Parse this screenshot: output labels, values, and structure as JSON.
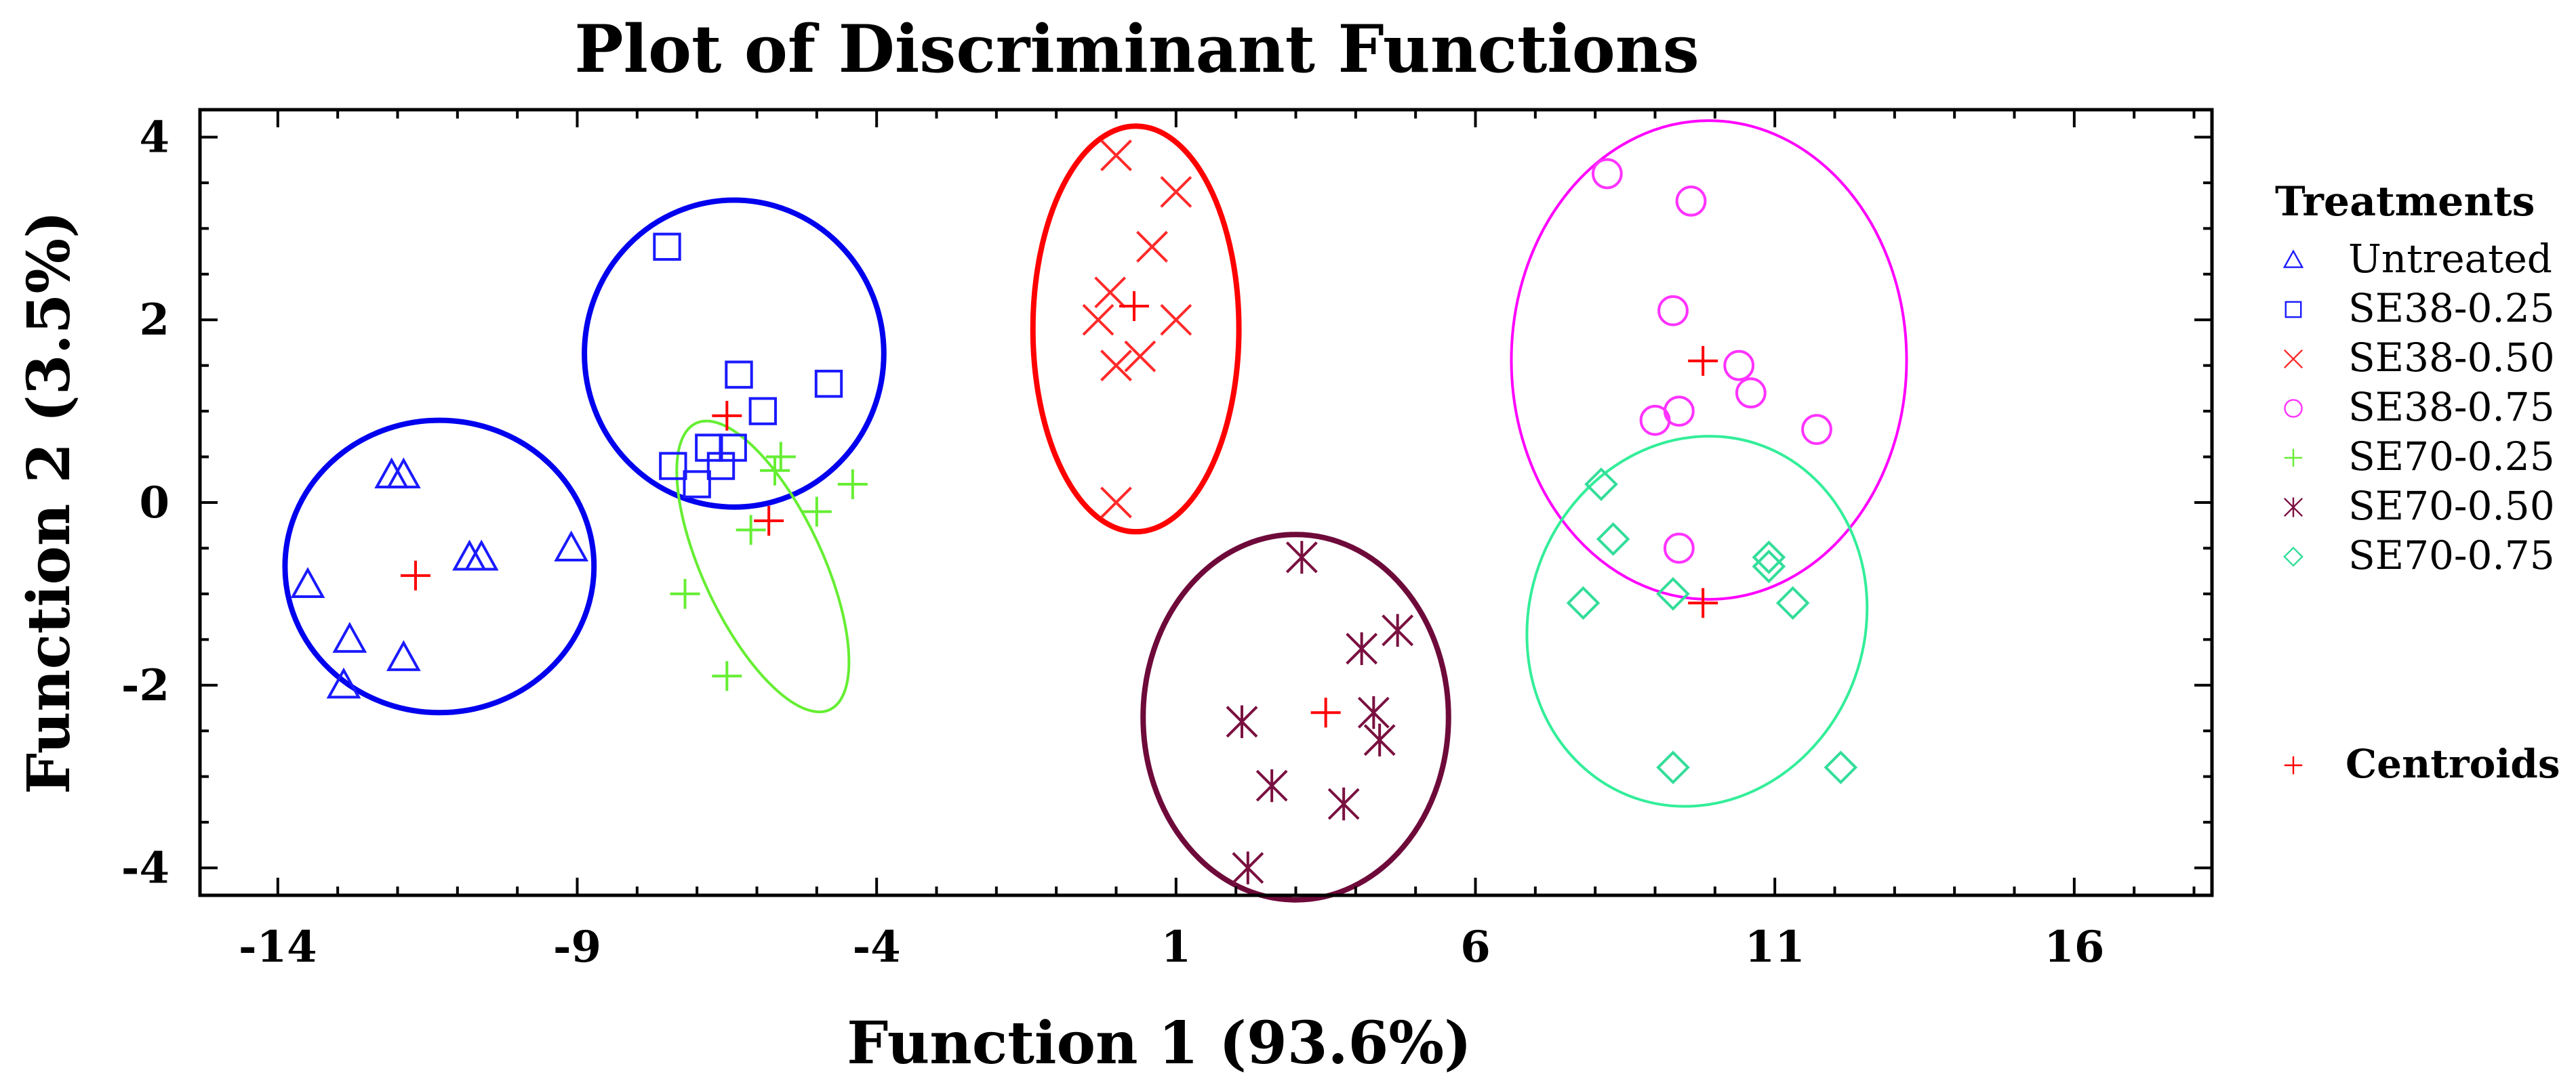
{
  "chart_data": {
    "type": "scatter",
    "title": "Plot of Discriminant Functions",
    "xlabel": "Function 1 (93.6%)",
    "ylabel": "Function 2 (3.5%)",
    "xlim": [
      -15.3,
      18.3
    ],
    "ylim": [
      -4.3,
      4.3
    ],
    "xticks": [
      -14,
      -9,
      -4,
      1,
      6,
      11,
      16
    ],
    "yticks": [
      -4,
      -2,
      0,
      2,
      4
    ],
    "legend": {
      "title": "Treatments",
      "position": "right",
      "centroids_label": "Centroids",
      "centroids_color": "#ff0000"
    },
    "series": [
      {
        "name": "Untreated",
        "marker": "triangle",
        "color": "#1a1aff",
        "ellipse_color": "#0000ee",
        "points": [
          [
            -13.5,
            -0.9
          ],
          [
            -12.8,
            -1.5
          ],
          [
            -12.9,
            -2.0
          ],
          [
            -12.1,
            0.3
          ],
          [
            -11.9,
            0.3
          ],
          [
            -11.9,
            -1.7
          ],
          [
            -10.8,
            -0.6
          ],
          [
            -10.6,
            -0.6
          ],
          [
            -9.1,
            -0.5
          ]
        ],
        "centroid": [
          -11.7,
          -0.8
        ],
        "ellipse": {
          "cx": -11.3,
          "cy": -0.7,
          "rx": 2.58,
          "ry": 1.6,
          "angle": 0
        }
      },
      {
        "name": "SE38-0.25",
        "marker": "square",
        "color": "#1a1aff",
        "ellipse_color": "#0000ee",
        "points": [
          [
            -7.5,
            2.8
          ],
          [
            -7.4,
            0.4
          ],
          [
            -7.0,
            0.2
          ],
          [
            -6.8,
            0.6
          ],
          [
            -6.6,
            0.4
          ],
          [
            -6.4,
            0.6
          ],
          [
            -6.3,
            1.4
          ],
          [
            -5.9,
            1.0
          ],
          [
            -4.8,
            1.3
          ]
        ],
        "centroid": [
          -6.5,
          0.95
        ],
        "ellipse": {
          "cx": -6.38,
          "cy": 1.63,
          "rx": 2.5,
          "ry": 1.68,
          "angle": 0
        }
      },
      {
        "name": "SE38-0.50",
        "marker": "x",
        "color": "#ff2a2a",
        "ellipse_color": "#ff0000",
        "points": [
          [
            0.0,
            3.8
          ],
          [
            1.0,
            3.4
          ],
          [
            0.6,
            2.8
          ],
          [
            -0.1,
            2.3
          ],
          [
            -0.3,
            2.0
          ],
          [
            1.0,
            2.0
          ],
          [
            0.4,
            1.6
          ],
          [
            0.0,
            1.5
          ],
          [
            0.0,
            0.0
          ]
        ],
        "centroid": [
          0.3,
          2.15
        ],
        "ellipse": {
          "cx": 0.33,
          "cy": 1.9,
          "rx": 1.72,
          "ry": 2.22,
          "angle": 0
        }
      },
      {
        "name": "SE38-0.75",
        "marker": "circle",
        "color": "#ff33ff",
        "ellipse_color": "#ff00ff",
        "points": [
          [
            8.2,
            3.6
          ],
          [
            9.6,
            3.3
          ],
          [
            9.3,
            2.1
          ],
          [
            10.4,
            1.5
          ],
          [
            10.6,
            1.2
          ],
          [
            9.4,
            1.0
          ],
          [
            9.0,
            0.9
          ],
          [
            11.7,
            0.8
          ],
          [
            9.4,
            -0.5
          ]
        ],
        "centroid": [
          9.8,
          1.55
        ],
        "ellipse": {
          "cx": 9.9,
          "cy": 1.56,
          "rx": 3.3,
          "ry": 2.62,
          "angle": 0
        }
      },
      {
        "name": "SE70-0.25",
        "marker": "plus",
        "color": "#66ee33",
        "ellipse_color": "#66ee33",
        "points": [
          [
            -5.6,
            0.5
          ],
          [
            -5.7,
            0.35
          ],
          [
            -4.4,
            0.2
          ],
          [
            -5.0,
            -0.1
          ],
          [
            -6.1,
            -0.3
          ],
          [
            -7.2,
            -1.0
          ],
          [
            -6.5,
            -1.9
          ]
        ],
        "centroid": [
          -5.8,
          -0.2
        ],
        "ellipse": {
          "cx": -5.9,
          "cy": -0.7,
          "rx": 1.0,
          "ry": 1.73,
          "angle": 25
        }
      },
      {
        "name": "SE70-0.50",
        "marker": "asterisk",
        "color": "#7a1040",
        "ellipse_color": "#6e0a3a",
        "points": [
          [
            3.1,
            -0.6
          ],
          [
            4.7,
            -1.4
          ],
          [
            4.1,
            -1.6
          ],
          [
            2.1,
            -2.4
          ],
          [
            4.3,
            -2.3
          ],
          [
            4.4,
            -2.6
          ],
          [
            2.6,
            -3.1
          ],
          [
            3.8,
            -3.3
          ],
          [
            2.2,
            -4.0
          ]
        ],
        "centroid": [
          3.5,
          -2.3
        ],
        "ellipse": {
          "cx": 3.0,
          "cy": -2.35,
          "rx": 2.55,
          "ry": 2.0,
          "angle": 0
        }
      },
      {
        "name": "SE70-0.75",
        "marker": "diamond",
        "color": "#33dd99",
        "ellipse_color": "#33ee99",
        "points": [
          [
            8.1,
            0.2
          ],
          [
            8.3,
            -0.4
          ],
          [
            10.9,
            -0.6
          ],
          [
            10.9,
            -0.7
          ],
          [
            9.3,
            -1.0
          ],
          [
            7.8,
            -1.1
          ],
          [
            11.3,
            -1.1
          ],
          [
            9.3,
            -2.9
          ],
          [
            12.1,
            -2.9
          ]
        ],
        "centroid": [
          9.8,
          -1.1
        ],
        "ellipse": {
          "cx": 9.7,
          "cy": -1.3,
          "rx": 2.8,
          "ry": 2.05,
          "angle": -20
        }
      }
    ]
  }
}
